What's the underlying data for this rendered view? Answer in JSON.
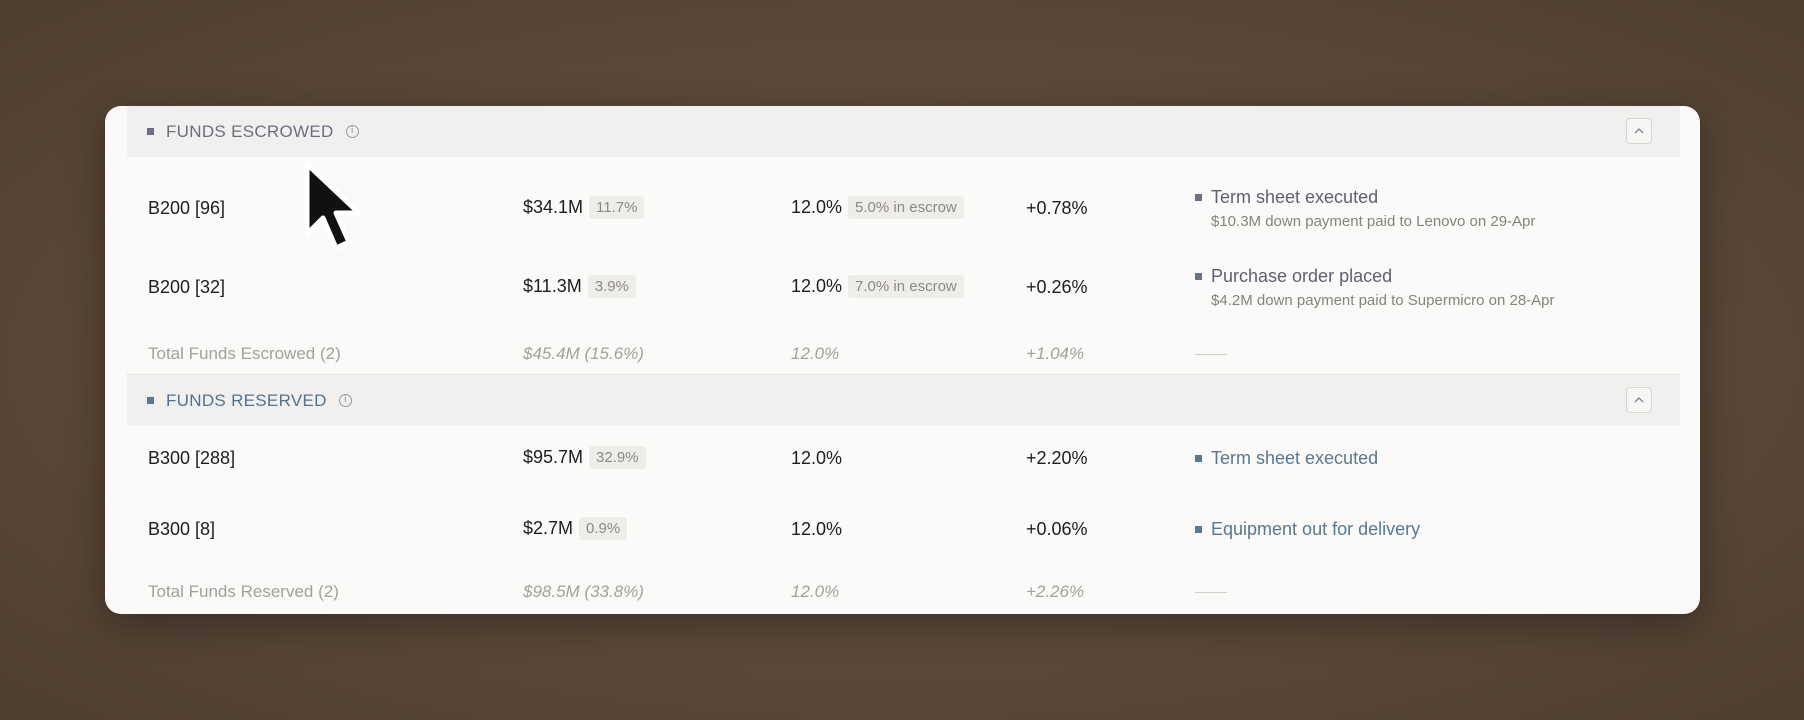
{
  "sections": [
    {
      "title": "FUNDS ESCROWED",
      "rows": [
        {
          "name": "B200 [96]",
          "amount": "$34.1M",
          "amount_pct": "11.7%",
          "rate": "12.0%",
          "rate_note": "5.0% in escrow",
          "delta": "+0.78%",
          "status": "Term sheet executed",
          "status_detail": "$10.3M down payment paid to Lenovo on 29-Apr"
        },
        {
          "name": "B200 [32]",
          "amount": "$11.3M",
          "amount_pct": "3.9%",
          "rate": "12.0%",
          "rate_note": "7.0% in escrow",
          "delta": "+0.26%",
          "status": "Purchase order placed",
          "status_detail": "$4.2M down payment paid to Supermicro on 28-Apr"
        }
      ],
      "total": {
        "label": "Total Funds Escrowed (2)",
        "amount": "$45.4M",
        "amount_pct": "(15.6%)",
        "rate": "12.0%",
        "delta": "+1.04%"
      }
    },
    {
      "title": "FUNDS RESERVED",
      "rows": [
        {
          "name": "B300 [288]",
          "amount": "$95.7M",
          "amount_pct": "32.9%",
          "rate": "12.0%",
          "delta": "+2.20%",
          "status": "Term sheet executed"
        },
        {
          "name": "B300 [8]",
          "amount": "$2.7M",
          "amount_pct": "0.9%",
          "rate": "12.0%",
          "delta": "+0.06%",
          "status": "Equipment out for delivery"
        }
      ],
      "total": {
        "label": "Total Funds Reserved (2)",
        "amount": "$98.5M",
        "amount_pct": "(33.8%)",
        "rate": "12.0%",
        "delta": "+2.26%"
      }
    }
  ],
  "icons": {
    "info": "info-icon",
    "collapse": "chevron-up-icon",
    "cursor": "mouse-pointer-icon"
  },
  "colors": {
    "escrow_accent": "#6d6f82",
    "reserve_accent": "#5a7a94"
  }
}
